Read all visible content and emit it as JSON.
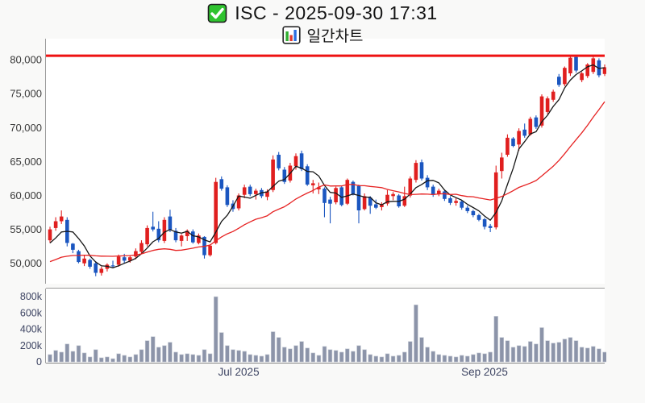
{
  "title": {
    "text": "ISC - 2025-09-30 17:31",
    "subtitle": "일간차트"
  },
  "icons": {
    "check_icon": "green-checkbox-with-white-checkmark",
    "chart_icon": "bar-chart-emoji"
  },
  "colors": {
    "page_bg": "#f9f9f8",
    "pane_bg": "#ffffff",
    "spine": "#9b9b9b",
    "price_label": "#3a3a3a",
    "volume_label": "#3e4563",
    "date_label": "#3e4563",
    "up": "#e01f1f",
    "down": "#1b56c0",
    "volume_bar": "#8c94a9",
    "volume_bar_edge": "#c6cbd5",
    "ma_fast": "#161616",
    "ma_slow": "#e62222",
    "limit_line": "#ee1111",
    "check_green": "#2fc32f"
  },
  "chart_data": {
    "type": "candlestick",
    "title": "ISC daily chart with volume",
    "price_axis": {
      "ylim": [
        47000,
        83100
      ],
      "ticks": [
        {
          "label": "50,000",
          "value": 50000
        },
        {
          "label": "55,000",
          "value": 55000
        },
        {
          "label": "60,000",
          "value": 60000
        },
        {
          "label": "65,000",
          "value": 65000
        },
        {
          "label": "70,000",
          "value": 70000
        },
        {
          "label": "75,000",
          "value": 75000
        },
        {
          "label": "80,000",
          "value": 80000
        }
      ]
    },
    "volume_axis": {
      "ylim": [
        0,
        900000
      ],
      "ticks": [
        {
          "label": "0",
          "value": 0
        },
        {
          "label": "200k",
          "value": 200000
        },
        {
          "label": "400k",
          "value": 400000
        },
        {
          "label": "600k",
          "value": 600000
        },
        {
          "label": "800k",
          "value": 800000
        }
      ]
    },
    "x_ticks": [
      {
        "label": "Jul 2025",
        "index": 33
      },
      {
        "label": "Sep 2025",
        "index": 76
      }
    ],
    "limit_line": {
      "price": 80600
    },
    "moving_averages": [
      {
        "name": "fast",
        "period": 5,
        "seed": 52500
      },
      {
        "name": "slow",
        "period": 20,
        "seed": 50000
      }
    ],
    "candles": [
      [
        "2025-05-15",
        53400,
        55400,
        53000,
        55000,
        90000
      ],
      [
        "2025-05-16",
        55200,
        56800,
        54800,
        56200,
        140000
      ],
      [
        "2025-05-19",
        56200,
        57800,
        55800,
        56900,
        120000
      ],
      [
        "2025-05-20",
        56400,
        56800,
        52500,
        53000,
        220000
      ],
      [
        "2025-05-21",
        52900,
        53000,
        51500,
        52000,
        130000
      ],
      [
        "2025-05-22",
        51800,
        52000,
        50000,
        50200,
        200000
      ],
      [
        "2025-05-23",
        50000,
        51200,
        49600,
        50700,
        110000
      ],
      [
        "2025-05-26",
        50500,
        50700,
        49200,
        49500,
        60000
      ],
      [
        "2025-05-27",
        50000,
        50300,
        48100,
        48600,
        150000
      ],
      [
        "2025-05-28",
        48600,
        49500,
        48200,
        49200,
        50000
      ],
      [
        "2025-05-29",
        49200,
        50000,
        48800,
        49800,
        60000
      ],
      [
        "2025-05-30",
        49700,
        50400,
        49300,
        49600,
        40000
      ],
      [
        "2025-06-02",
        49800,
        51300,
        49500,
        51000,
        100000
      ],
      [
        "2025-06-03",
        50900,
        51400,
        50000,
        50400,
        80000
      ],
      [
        "2025-06-04",
        50400,
        51200,
        50100,
        50900,
        60000
      ],
      [
        "2025-06-05",
        51000,
        52200,
        50600,
        51800,
        90000
      ],
      [
        "2025-06-06",
        51700,
        53400,
        51400,
        53000,
        150000
      ],
      [
        "2025-06-09",
        52800,
        55600,
        52500,
        55200,
        260000
      ],
      [
        "2025-06-10",
        55400,
        57600,
        54700,
        55000,
        310000
      ],
      [
        "2025-06-11",
        55100,
        56200,
        53100,
        53400,
        180000
      ],
      [
        "2025-06-12",
        53300,
        56800,
        53000,
        56400,
        200000
      ],
      [
        "2025-06-13",
        56900,
        57900,
        54600,
        54900,
        240000
      ],
      [
        "2025-06-16",
        54800,
        55200,
        53100,
        53400,
        120000
      ],
      [
        "2025-06-17",
        53300,
        54300,
        52500,
        54100,
        90000
      ],
      [
        "2025-06-18",
        54000,
        55000,
        53300,
        54800,
        100000
      ],
      [
        "2025-06-19",
        54700,
        55000,
        52900,
        53100,
        90000
      ],
      [
        "2025-06-20",
        53000,
        54400,
        52800,
        54100,
        80000
      ],
      [
        "2025-06-23",
        53900,
        54000,
        50700,
        51200,
        150000
      ],
      [
        "2025-06-24",
        51200,
        52800,
        51000,
        52600,
        100000
      ],
      [
        "2025-06-25",
        53000,
        62600,
        52800,
        62000,
        800000
      ],
      [
        "2025-06-26",
        62400,
        62800,
        60700,
        61000,
        360000
      ],
      [
        "2025-06-27",
        61200,
        61500,
        58300,
        58600,
        200000
      ],
      [
        "2025-06-30",
        58800,
        59300,
        57600,
        58000,
        150000
      ],
      [
        "2025-07-01",
        58100,
        60300,
        57800,
        60000,
        140000
      ],
      [
        "2025-07-02",
        60100,
        61600,
        59600,
        61200,
        130000
      ],
      [
        "2025-07-03",
        61300,
        61600,
        59900,
        60200,
        90000
      ],
      [
        "2025-07-04",
        60200,
        61000,
        59400,
        60700,
        80000
      ],
      [
        "2025-07-07",
        60800,
        61100,
        59600,
        59900,
        70000
      ],
      [
        "2025-07-08",
        59800,
        60900,
        59300,
        60600,
        90000
      ],
      [
        "2025-07-09",
        60800,
        65900,
        60500,
        65300,
        370000
      ],
      [
        "2025-07-10",
        66000,
        66400,
        63700,
        64000,
        300000
      ],
      [
        "2025-07-11",
        63800,
        64200,
        61700,
        62000,
        180000
      ],
      [
        "2025-07-14",
        62200,
        64800,
        61900,
        64400,
        160000
      ],
      [
        "2025-07-15",
        64300,
        66200,
        63800,
        65800,
        200000
      ],
      [
        "2025-07-16",
        66200,
        66600,
        63600,
        63900,
        250000
      ],
      [
        "2025-07-17",
        64300,
        64600,
        61400,
        61600,
        170000
      ],
      [
        "2025-07-18",
        61500,
        62300,
        60300,
        61800,
        110000
      ],
      [
        "2025-07-21",
        60900,
        61900,
        60200,
        61200,
        80000
      ],
      [
        "2025-07-22",
        61000,
        61200,
        56800,
        58900,
        190000
      ],
      [
        "2025-07-23",
        59400,
        59800,
        55900,
        58800,
        150000
      ],
      [
        "2025-07-24",
        59000,
        61300,
        58700,
        61100,
        140000
      ],
      [
        "2025-07-25",
        61200,
        61400,
        58400,
        58600,
        120000
      ],
      [
        "2025-07-28",
        58800,
        62500,
        58600,
        62300,
        160000
      ],
      [
        "2025-07-29",
        62000,
        62200,
        60000,
        60200,
        130000
      ],
      [
        "2025-07-30",
        61400,
        61600,
        55900,
        57800,
        200000
      ],
      [
        "2025-07-31",
        58000,
        60300,
        57800,
        59900,
        150000
      ],
      [
        "2025-08-01",
        59700,
        59900,
        57300,
        58500,
        90000
      ],
      [
        "2025-08-04",
        58700,
        59400,
        58000,
        58200,
        70000
      ],
      [
        "2025-08-05",
        58300,
        59000,
        57800,
        58700,
        60000
      ],
      [
        "2025-08-06",
        58800,
        60800,
        58500,
        60100,
        100000
      ],
      [
        "2025-08-07",
        59900,
        60500,
        59300,
        60200,
        70000
      ],
      [
        "2025-08-08",
        60000,
        60200,
        58200,
        58400,
        80000
      ],
      [
        "2025-08-11",
        58500,
        61300,
        58300,
        59900,
        120000
      ],
      [
        "2025-08-12",
        60000,
        62800,
        59700,
        62500,
        250000
      ],
      [
        "2025-08-13",
        62300,
        65200,
        61900,
        64800,
        700000
      ],
      [
        "2025-08-14",
        64900,
        65300,
        62200,
        62500,
        300000
      ],
      [
        "2025-08-18",
        62600,
        63000,
        60800,
        61200,
        180000
      ],
      [
        "2025-08-19",
        61300,
        61600,
        59800,
        60100,
        130000
      ],
      [
        "2025-08-20",
        60200,
        61000,
        59900,
        60700,
        90000
      ],
      [
        "2025-08-21",
        60600,
        60800,
        59200,
        59500,
        80000
      ],
      [
        "2025-08-22",
        59600,
        59900,
        58600,
        58900,
        70000
      ],
      [
        "2025-08-25",
        58900,
        59600,
        58500,
        59200,
        60000
      ],
      [
        "2025-08-26",
        59100,
        59300,
        57900,
        58200,
        80000
      ],
      [
        "2025-08-27",
        58200,
        58500,
        57400,
        57700,
        70000
      ],
      [
        "2025-08-28",
        57700,
        57900,
        56800,
        57100,
        90000
      ],
      [
        "2025-08-29",
        57100,
        57300,
        56200,
        56400,
        110000
      ],
      [
        "2025-09-01",
        56500,
        56700,
        55000,
        55400,
        100000
      ],
      [
        "2025-09-02",
        55500,
        55800,
        54600,
        55200,
        120000
      ],
      [
        "2025-09-03",
        55300,
        64400,
        55000,
        63400,
        560000
      ],
      [
        "2025-09-04",
        63600,
        66300,
        62500,
        65600,
        300000
      ],
      [
        "2025-09-05",
        66000,
        69000,
        65700,
        68500,
        260000
      ],
      [
        "2025-09-08",
        68400,
        68600,
        67100,
        67300,
        180000
      ],
      [
        "2025-09-09",
        67500,
        69900,
        66600,
        69500,
        200000
      ],
      [
        "2025-09-10",
        69700,
        70600,
        68500,
        68800,
        190000
      ],
      [
        "2025-09-11",
        69000,
        71600,
        68800,
        71300,
        250000
      ],
      [
        "2025-09-12",
        71500,
        71800,
        69800,
        70100,
        220000
      ],
      [
        "2025-09-15",
        70300,
        74900,
        70000,
        74600,
        420000
      ],
      [
        "2025-09-16",
        72300,
        74600,
        72000,
        74300,
        260000
      ],
      [
        "2025-09-17",
        74100,
        75600,
        73800,
        75300,
        230000
      ],
      [
        "2025-09-18",
        77500,
        77900,
        76000,
        76300,
        240000
      ],
      [
        "2025-09-19",
        76400,
        79000,
        76100,
        78800,
        280000
      ],
      [
        "2025-09-22",
        78000,
        80600,
        77600,
        80300,
        300000
      ],
      [
        "2025-09-23",
        80400,
        80600,
        78100,
        78400,
        260000
      ],
      [
        "2025-09-24",
        77000,
        78200,
        76700,
        78000,
        180000
      ],
      [
        "2025-09-25",
        77600,
        79500,
        77300,
        79300,
        170000
      ],
      [
        "2025-09-26",
        78200,
        80500,
        77900,
        80200,
        190000
      ],
      [
        "2025-09-29",
        79900,
        80200,
        77400,
        77700,
        160000
      ],
      [
        "2025-09-30",
        77900,
        79300,
        77600,
        78900,
        120000
      ]
    ]
  }
}
